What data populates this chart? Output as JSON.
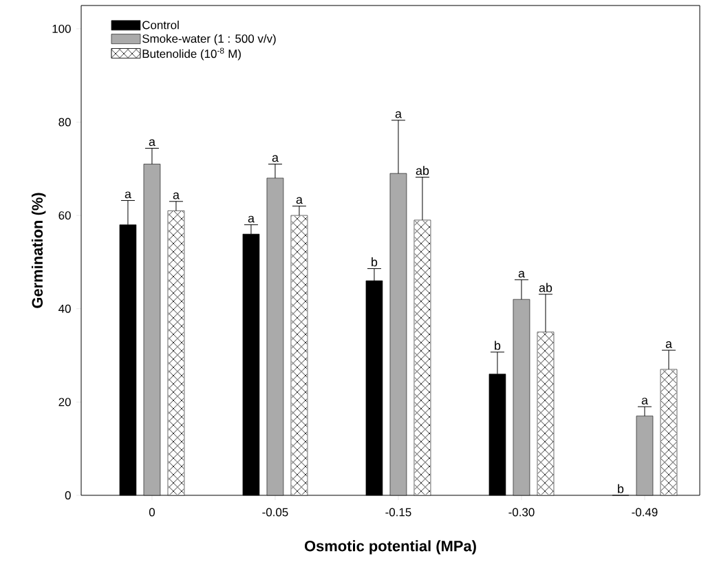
{
  "chart_data": {
    "type": "bar",
    "xlabel": "Osmotic potential (MPa)",
    "ylabel": "Germination (%)",
    "categories": [
      "0",
      "-0.05",
      "-0.15",
      "-0.30",
      "-0.49"
    ],
    "series": [
      {
        "name": "Control",
        "color": "#000000",
        "values": [
          58,
          56,
          46,
          26,
          0
        ],
        "errors": [
          5.2,
          2,
          2.6,
          4.7,
          null
        ]
      },
      {
        "name": "Smoke-water (1 : 500 v/v)",
        "color": "#aaaaaa",
        "values": [
          71,
          68,
          69,
          42,
          17
        ],
        "errors": [
          3.4,
          3,
          11.4,
          4.2,
          2
        ]
      },
      {
        "name": "Butenolide (10$^{-8}$ M)",
        "color": "#ffffff",
        "values": [
          61,
          60,
          59,
          35,
          27
        ],
        "errors": [
          2,
          2,
          9.2,
          8.1,
          4.1
        ]
      }
    ],
    "ylim": [
      0,
      105
    ],
    "yticks": [
      0,
      20,
      40,
      60,
      80,
      100
    ],
    "legend": "top left",
    "grid": false,
    "annotations": [
      "a",
      "a",
      "a",
      "a",
      "a",
      "a",
      "b",
      "a",
      "ab",
      "b",
      "a",
      "ab",
      "b",
      "a",
      "a"
    ]
  }
}
